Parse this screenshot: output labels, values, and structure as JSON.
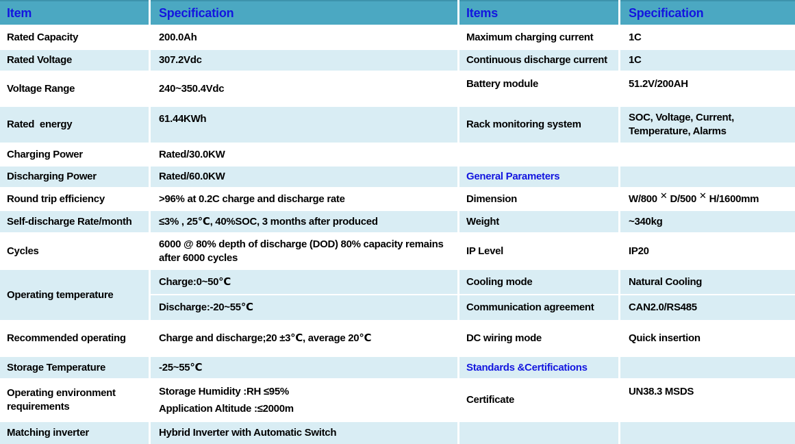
{
  "colors": {
    "header_bg": "#4BA8C2",
    "header_top": "#3D93AC",
    "alt_row_bg": "#D9EDF4",
    "header_text": "#1316DF",
    "section_text": "#1316DF",
    "body_text": "#000000"
  },
  "left_table": {
    "header": {
      "item": "Item",
      "spec": "Specification"
    },
    "rows": [
      {
        "item": "Rated Capacity",
        "spec": "200.0Ah"
      },
      {
        "item": "Rated Voltage",
        "spec": "307.2Vdc"
      },
      {
        "item": "Voltage Range",
        "spec": "240~350.4Vdc"
      },
      {
        "item": "Rated  energy",
        "spec": "61.44KWh"
      },
      {
        "item": "Charging Power",
        "spec": "Rated/30.0KW"
      },
      {
        "item": "Discharging Power",
        "spec": "Rated/60.0KW"
      },
      {
        "item": "Round trip efficiency",
        "spec": ">96% at 0.2C charge and discharge rate"
      },
      {
        "item": "Self-discharge Rate/month",
        "spec": "≤3% , 25℃, 40%SOC, 3 months after produced"
      },
      {
        "item": "Cycles",
        "spec": "6000 @ 80% depth of discharge (DOD) 80% capacity remains after 6000 cycles"
      },
      {
        "item": "Operating temperature",
        "spec_charge": "Charge:0~50℃",
        "spec_discharge": "Discharge:-20~55℃"
      },
      {
        "item": "Recommended operating",
        "spec": "Charge and discharge;20 ±3℃, average 20℃"
      },
      {
        "item": "Storage Temperature",
        "spec": "-25~55℃"
      },
      {
        "item": "Operating environment requirements",
        "spec_line1": "Storage Humidity :RH ≤95%",
        "spec_line2": "Application Altitude :≤2000m"
      },
      {
        "item": "Matching inverter",
        "spec": "Hybrid Inverter with Automatic Switch"
      }
    ]
  },
  "right_table": {
    "header": {
      "item": "Items",
      "spec": "Specification"
    },
    "rows": [
      {
        "item": "Maximum charging current",
        "spec": "1C"
      },
      {
        "item": "Continuous discharge current",
        "spec": "1C"
      },
      {
        "item": "Battery module",
        "spec": "51.2V/200AH"
      },
      {
        "item": "Rack monitoring system",
        "spec": "SOC, Voltage, Current, Temperature, Alarms"
      },
      {
        "section": "General Parameters"
      },
      {
        "item": "Dimension",
        "dim_a": "W/800",
        "dim_x1": "✕",
        "dim_b": "D/500",
        "dim_x2": "✕",
        "dim_c": "H/1600mm"
      },
      {
        "item": "Weight",
        "spec": "~340kg"
      },
      {
        "item": "IP Level",
        "spec": "IP20"
      },
      {
        "item": "Cooling mode",
        "spec": "Natural Cooling"
      },
      {
        "item": "Communication agreement",
        "spec": "CAN2.0/RS485"
      },
      {
        "item": "DC wiring mode",
        "spec": "Quick insertion"
      },
      {
        "section": "Standards &Certifications"
      },
      {
        "item": "Certificate",
        "spec": "UN38.3 MSDS"
      }
    ]
  }
}
